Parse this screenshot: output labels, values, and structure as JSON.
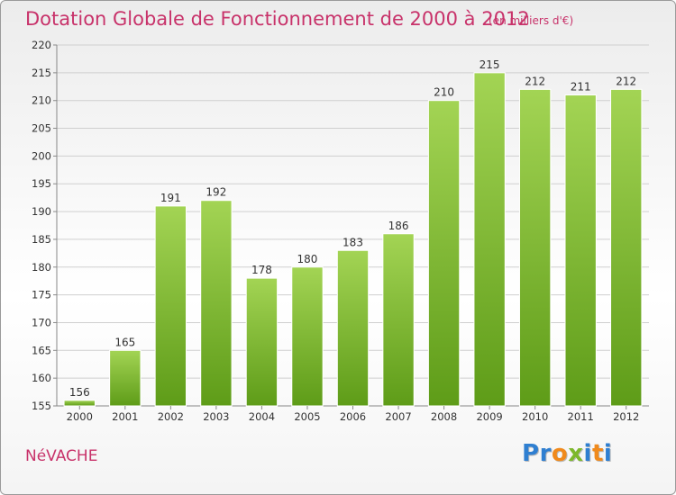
{
  "title": "Dotation Globale de Fonctionnement de 2000 à 2012",
  "unit_note": "(en milliers d'€)",
  "commune": "NéVACHE",
  "logo": {
    "letters": [
      {
        "ch": "P",
        "color": "#2f7fd1"
      },
      {
        "ch": "r",
        "color": "#2f7fd1"
      },
      {
        "ch": "o",
        "color": "#f08a1c"
      },
      {
        "ch": "x",
        "color": "#7db82c"
      },
      {
        "ch": "i",
        "color": "#2f7fd1"
      },
      {
        "ch": "t",
        "color": "#f08a1c"
      },
      {
        "ch": "i",
        "color": "#2f7fd1"
      }
    ]
  },
  "colors": {
    "bar_top": "#a3d454",
    "bar_bottom": "#5e9c18",
    "grid": "#cfcfcf",
    "text": "#333333",
    "accent": "#c8326a"
  },
  "chart_data": {
    "type": "bar",
    "categories": [
      "2000",
      "2001",
      "2002",
      "2003",
      "2004",
      "2005",
      "2006",
      "2007",
      "2008",
      "2009",
      "2010",
      "2011",
      "2012"
    ],
    "values": [
      156,
      165,
      191,
      192,
      178,
      180,
      183,
      186,
      210,
      215,
      212,
      211,
      212
    ],
    "title": "Dotation Globale de Fonctionnement de 2000 à 2012",
    "ylim": [
      155,
      220
    ],
    "yticks": [
      155,
      160,
      165,
      170,
      175,
      180,
      185,
      190,
      195,
      200,
      205,
      210,
      215,
      220
    ],
    "grid": true,
    "data_labels": true
  }
}
